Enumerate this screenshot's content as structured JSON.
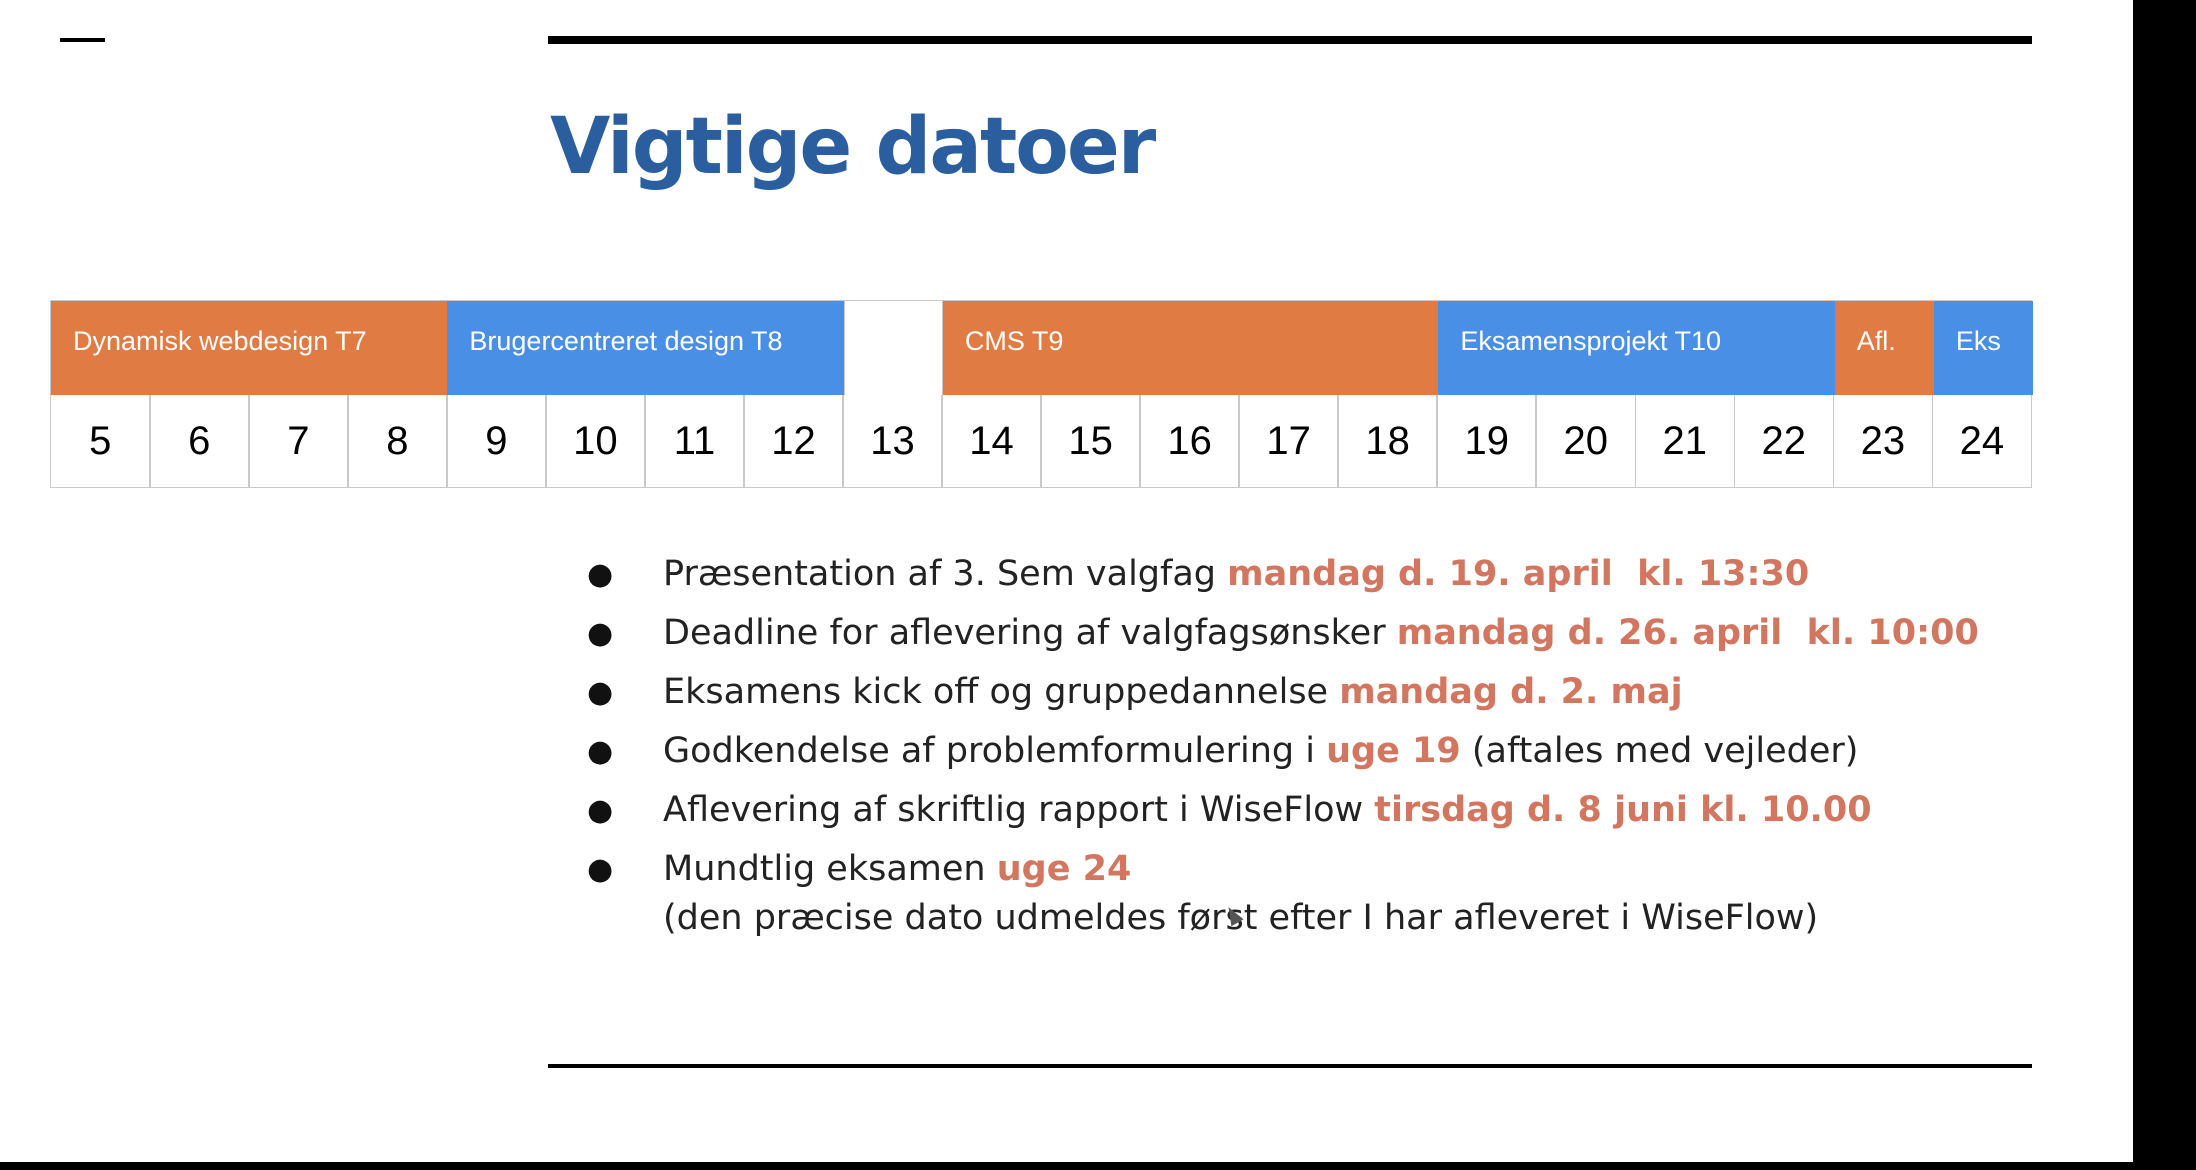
{
  "slide": {
    "title": "Vigtige datoer"
  },
  "timeline": {
    "phases": [
      {
        "label": "Dynamisk webdesign T7",
        "color": "#e07b43",
        "weeks": 4
      },
      {
        "label": "Brugercentreret design T8",
        "color": "#4a8fe6",
        "weeks": 4
      },
      {
        "label": "",
        "color": "#ffffff",
        "weeks": 1
      },
      {
        "label": "CMS  T9",
        "color": "#e07b43",
        "weeks": 5
      },
      {
        "label": "Eksamensprojekt T10",
        "color": "#4a8fe6",
        "weeks": 4
      },
      {
        "label": "Afl.",
        "color": "#e07b43",
        "weeks": 1
      },
      {
        "label": "Eks",
        "color": "#4a8fe6",
        "weeks": 1
      }
    ],
    "weeks": [
      "5",
      "6",
      "7",
      "8",
      "9",
      "10",
      "11",
      "12",
      "13",
      "14",
      "15",
      "16",
      "17",
      "18",
      "19",
      "20",
      "21",
      "22",
      "23",
      "24"
    ]
  },
  "bullets": [
    {
      "text": "Præsentation af 3. Sem valgfag ",
      "highlight": "mandag d. 19. april  kl. 13:30",
      "after": ""
    },
    {
      "text": "Deadline for aflevering af valgfagsønsker ",
      "highlight": "mandag d. 26. april  kl. 10:00",
      "after": ""
    },
    {
      "text": "Eksamens kick off og gruppedannelse ",
      "highlight": "mandag d. 2. maj",
      "after": ""
    },
    {
      "text": "Godkendelse af problemformulering i ",
      "highlight": "uge 19",
      "after": " (aftales med vejleder)"
    },
    {
      "text": "Aflevering af skriftlig rapport i WiseFlow ",
      "highlight": "tirsdag d. 8 juni kl. 10.00",
      "after": ""
    },
    {
      "text": "Mundtlig eksamen ",
      "highlight": "uge 24",
      "after": ""
    }
  ],
  "note": "(den præcise dato udmeldes først efter I har afleveret i WiseFlow)",
  "bullet_glyph": "●",
  "colors": {
    "title": "#2a5e9e",
    "highlight": "#d2765f",
    "orange": "#e07b43",
    "blue": "#4a8fe6"
  }
}
